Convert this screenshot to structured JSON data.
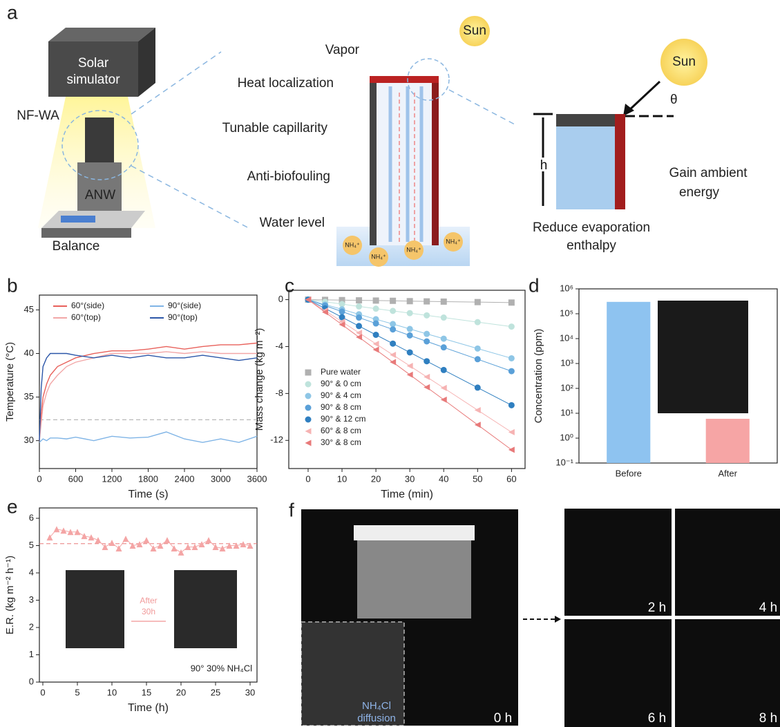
{
  "panel_a": {
    "label": "a",
    "solar_simulator": [
      "Solar",
      "simulator"
    ],
    "nf_wa": "NF-WA",
    "anw": "ANW",
    "balance": "Balance",
    "vapor": "Vapor",
    "heat": "Heat localization",
    "capillarity": "Tunable capillarity",
    "antibiofouling": "Anti-biofouling",
    "water_level": "Water level",
    "sun_left": "Sun",
    "sun_right": "Sun",
    "theta": "θ",
    "h": "h",
    "gain": [
      "Gain ambient",
      "energy"
    ],
    "reduce": [
      "Reduce evaporation",
      "enthalpy"
    ],
    "ions": [
      "NH₄⁺",
      "NH₄⁺",
      "NH₄⁺",
      "NH₄⁺"
    ]
  },
  "chart_data": [
    {
      "type": "line",
      "panel": "b",
      "xlabel": "Time (s)",
      "ylabel": "Temperature (°C)",
      "x": [
        0,
        30,
        60,
        120,
        180,
        300,
        450,
        600,
        900,
        1200,
        1500,
        1800,
        2100,
        2400,
        2700,
        3000,
        3300,
        3600
      ],
      "xlim": [
        0,
        3600
      ],
      "xticks": [
        0,
        600,
        1200,
        1800,
        2400,
        3000,
        3600
      ],
      "ylim": [
        26.8,
        46.7
      ],
      "yticks": [
        30,
        35,
        40,
        45
      ],
      "reference_line": {
        "value": 32.4,
        "color": "#aaaaaa"
      },
      "legend": "upper-left",
      "legend_columns": 2,
      "series": [
        {
          "name": "60°(side)",
          "color": "#e8605a",
          "values": [
            30,
            33,
            35,
            36.5,
            37.5,
            38.5,
            39,
            39.5,
            40,
            40.3,
            40.3,
            40.5,
            40.8,
            40.5,
            40.8,
            41,
            41,
            41.2
          ]
        },
        {
          "name": "60°(top)",
          "color": "#f2a7a7",
          "values": [
            30,
            32,
            34,
            35.5,
            36.5,
            37.5,
            38.5,
            39,
            39.5,
            40,
            40,
            40,
            40.2,
            40,
            40.2,
            40,
            40,
            40
          ]
        },
        {
          "name": "90°(side)",
          "color": "#7fb4e6",
          "values": [
            29.8,
            30,
            30.2,
            30,
            30.3,
            30.3,
            30.2,
            30.4,
            30,
            30.5,
            30.3,
            30.4,
            31,
            30.2,
            29.8,
            30.2,
            29.8,
            30.5
          ]
        },
        {
          "name": "90°(top)",
          "color": "#2b56a8",
          "values": [
            30,
            36,
            38.5,
            39.5,
            40,
            40,
            40,
            39.8,
            39.5,
            39.8,
            39.5,
            39.8,
            39.5,
            39.5,
            39.8,
            39.5,
            39.2,
            39.5
          ]
        }
      ]
    },
    {
      "type": "line",
      "panel": "c",
      "xlabel": "Time (min)",
      "ylabel": "Mass change (kg m⁻²)",
      "x": [
        0,
        5,
        10,
        15,
        20,
        25,
        30,
        35,
        40,
        50,
        60
      ],
      "xlim": [
        -5.7,
        64
      ],
      "xticks": [
        0,
        10,
        20,
        30,
        40,
        50,
        60
      ],
      "ylim": [
        -14.4,
        0.8
      ],
      "yticks": [
        0,
        -4,
        -8,
        -12
      ],
      "legend": "lower-left",
      "series": [
        {
          "name": "Pure water",
          "color": "#b0b0b0",
          "marker": "square",
          "values": [
            0,
            -0.02,
            -0.04,
            -0.06,
            -0.08,
            -0.1,
            -0.13,
            -0.15,
            -0.17,
            -0.21,
            -0.25
          ]
        },
        {
          "name": "90° & 0 cm",
          "color": "#bfe3dc",
          "marker": "circle",
          "values": [
            0,
            -0.19,
            -0.38,
            -0.58,
            -0.77,
            -0.96,
            -1.15,
            -1.34,
            -1.53,
            -1.92,
            -2.3
          ]
        },
        {
          "name": "90° & 4 cm",
          "color": "#8ec6e6",
          "marker": "circle",
          "values": [
            0,
            -0.42,
            -0.83,
            -1.25,
            -1.67,
            -2.08,
            -2.5,
            -2.92,
            -3.33,
            -4.17,
            -5
          ]
        },
        {
          "name": "90° & 8 cm",
          "color": "#5aa0d8",
          "marker": "circle",
          "values": [
            0,
            -0.51,
            -1.02,
            -1.53,
            -2.03,
            -2.54,
            -3.05,
            -3.56,
            -4.07,
            -5.08,
            -6.1
          ]
        },
        {
          "name": "90° & 12 cm",
          "color": "#2f7fc0",
          "marker": "circle",
          "values": [
            0,
            -0.75,
            -1.5,
            -2.25,
            -3,
            -3.75,
            -4.5,
            -5.25,
            -6,
            -7.5,
            -9
          ]
        },
        {
          "name": "60° & 8 cm",
          "color": "#f6b3b3",
          "marker": "triangle-left",
          "values": [
            0,
            -0.94,
            -1.88,
            -2.83,
            -3.77,
            -4.71,
            -5.65,
            -6.59,
            -7.53,
            -9.42,
            -11.3
          ]
        },
        {
          "name": "30° & 8 cm",
          "color": "#e87a7a",
          "marker": "triangle-left",
          "values": [
            0,
            -1.07,
            -2.13,
            -3.2,
            -4.27,
            -5.33,
            -6.4,
            -7.47,
            -8.53,
            -10.67,
            -12.8
          ]
        }
      ]
    },
    {
      "type": "bar",
      "panel": "d",
      "ylabel": "Concentration (ppm)",
      "log_y": true,
      "categories": [
        "Before",
        "After"
      ],
      "values": [
        300000,
        6
      ],
      "colors": [
        "#8ec3f0",
        "#f6a5a5"
      ],
      "ylim": [
        0.1,
        1000000
      ],
      "yticks": [
        {
          "value": 0.1,
          "label": "10⁻¹"
        },
        {
          "value": 1,
          "label": "10⁰"
        },
        {
          "value": 10,
          "label": "10¹"
        },
        {
          "value": 100,
          "label": "10²"
        },
        {
          "value": 1000,
          "label": "10³"
        },
        {
          "value": 10000,
          "label": "10⁴"
        },
        {
          "value": 100000,
          "label": "10⁵"
        },
        {
          "value": 1000000,
          "label": "10⁶"
        }
      ]
    },
    {
      "type": "line",
      "panel": "e",
      "xlabel": "Time (h)",
      "ylabel": "E.R. (kg m⁻² h⁻¹)",
      "x": [
        1,
        2,
        3,
        4,
        5,
        6,
        7,
        8,
        9,
        10,
        11,
        12,
        13,
        14,
        15,
        16,
        17,
        18,
        19,
        20,
        21,
        22,
        23,
        24,
        25,
        26,
        27,
        28,
        29,
        30
      ],
      "xlim": [
        -0.5,
        31
      ],
      "xticks": [
        0,
        5,
        10,
        15,
        20,
        25,
        30
      ],
      "ylim": [
        0,
        6.38
      ],
      "yticks": [
        0,
        1,
        2,
        3,
        4,
        5,
        6
      ],
      "reference_line": {
        "value": 5.07,
        "color": "#e87a7a"
      },
      "annotation": [
        "After",
        "30h"
      ],
      "condition": "90°  30% NH₄Cl",
      "series": [
        {
          "color": "#f4a5a5",
          "marker": "triangle-up",
          "values": [
            5.3,
            5.6,
            5.55,
            5.5,
            5.5,
            5.35,
            5.3,
            5.2,
            4.95,
            5.1,
            4.9,
            5.25,
            5.0,
            5.05,
            5.2,
            4.9,
            5.0,
            5.2,
            4.9,
            4.75,
            4.95,
            4.95,
            5.05,
            5.2,
            4.95,
            4.9,
            5.0,
            5.0,
            5.05,
            5.0
          ]
        }
      ]
    }
  ],
  "panel_f": {
    "label": "f",
    "times": [
      "0 h",
      "2 h",
      "4 h",
      "6 h",
      "8 h"
    ],
    "inset": [
      "NH₄Cl",
      "diffusion"
    ]
  }
}
